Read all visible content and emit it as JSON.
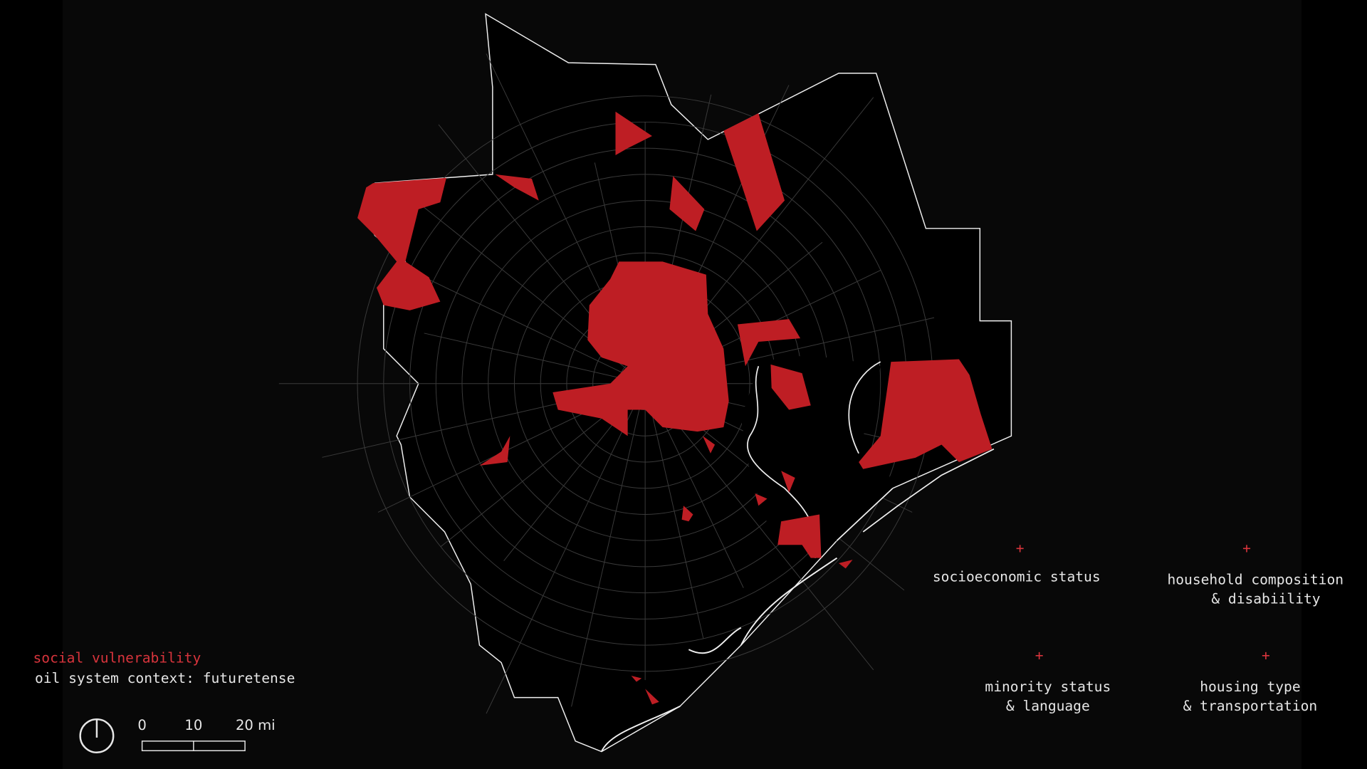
{
  "colors": {
    "background": "#000000",
    "vulnerable_tract": "#be1e24",
    "boundary": "#f0f0f0",
    "tract_lines": "#3a3a3a",
    "accent_text": "#d8343c"
  },
  "legend": {
    "title": "social vulnerability",
    "subtitle": "oil system context: futuretense"
  },
  "scale_bar": {
    "ticks": [
      "0",
      "10",
      "20 mi"
    ]
  },
  "north_arrow_icon": "north-arrow-icon",
  "themes": [
    {
      "marker": "+",
      "lines": [
        "socioeconomic status"
      ]
    },
    {
      "marker": "+",
      "lines": [
        "household composition",
        "& disabiility"
      ]
    },
    {
      "marker": "+",
      "lines": [
        "minority status",
        "& language"
      ]
    },
    {
      "marker": "+",
      "lines": [
        "housing type",
        "& transportation"
      ]
    }
  ]
}
